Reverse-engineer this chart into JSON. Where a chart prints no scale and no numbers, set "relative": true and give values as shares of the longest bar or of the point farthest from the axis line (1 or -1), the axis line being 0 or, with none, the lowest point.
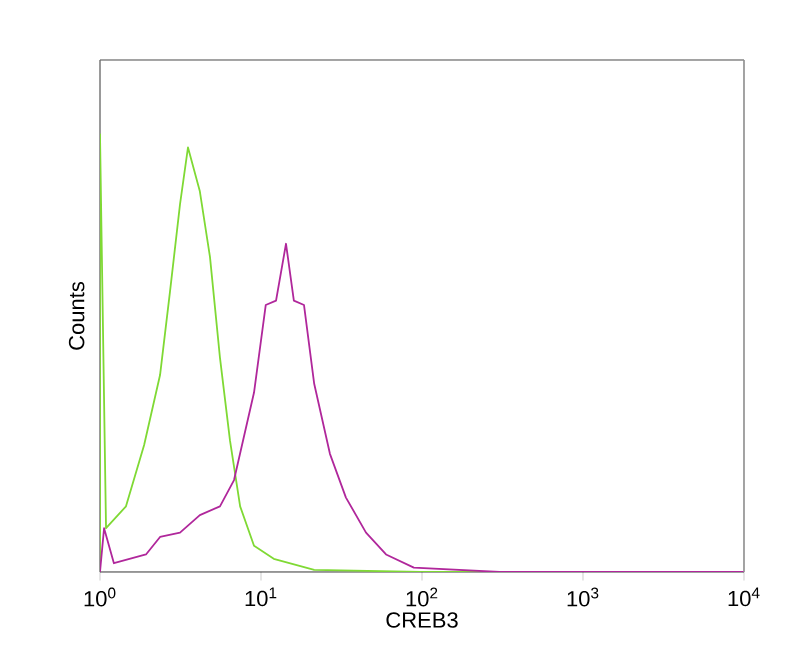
{
  "chart_data": {
    "type": "line",
    "xlabel": "CREB3",
    "ylabel": "Counts",
    "log": "x",
    "relative": true,
    "xlim": [
      1,
      10000
    ],
    "xticks": [
      {
        "value": 1,
        "label": "10$^{0}$"
      },
      {
        "value": 10,
        "label": "10$^{1}$"
      },
      {
        "value": 100,
        "label": "10$^{2}$"
      },
      {
        "value": 1000,
        "label": "10$^{3}$"
      },
      {
        "value": 10000,
        "label": "10$^{4}$"
      }
    ],
    "grid": false,
    "marker": "none",
    "line_style": "solid",
    "series": [
      {
        "color": "#7fd934",
        "x": [
          1,
          1,
          1.09,
          1.45,
          1.88,
          2.36,
          2.72,
          3.14,
          3.52,
          4.17,
          4.82,
          5.56,
          6.42,
          7.42,
          9.05,
          12.0,
          21.4,
          97.5,
          10000
        ],
        "values": [
          0,
          1,
          0.1,
          0.15,
          0.29,
          0.45,
          0.64,
          0.84,
          0.97,
          0.87,
          0.72,
          0.49,
          0.3,
          0.15,
          0.06,
          0.03,
          0.005,
          0,
          0
        ]
      },
      {
        "color": "#b0279b",
        "x": [
          1,
          1.06,
          1.22,
          1.93,
          2.36,
          3.14,
          4.17,
          5.56,
          6.8,
          9.05,
          10.7,
          12.4,
          14.3,
          16.0,
          18.5,
          21.4,
          26.8,
          33.7,
          44.9,
          59.8,
          89.0,
          303,
          10000
        ],
        "values": [
          0,
          0.1,
          0.02,
          0.04,
          0.08,
          0.09,
          0.13,
          0.15,
          0.21,
          0.41,
          0.61,
          0.62,
          0.75,
          0.62,
          0.61,
          0.43,
          0.27,
          0.17,
          0.09,
          0.04,
          0.01,
          0,
          0
        ]
      }
    ]
  }
}
